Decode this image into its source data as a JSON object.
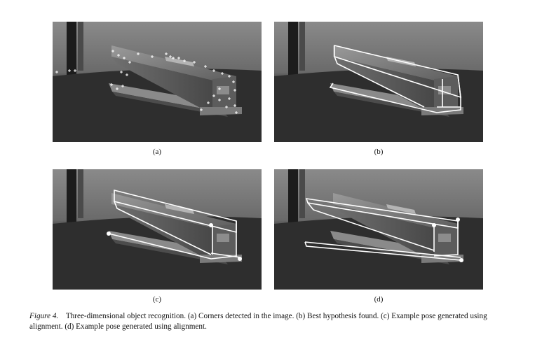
{
  "panels": [
    {
      "id": "a",
      "label": "(a)"
    },
    {
      "id": "b",
      "label": "(b)"
    },
    {
      "id": "c",
      "label": "(c)"
    },
    {
      "id": "d",
      "label": "(d)"
    }
  ],
  "caption": {
    "figure_label": "Figure 4.",
    "text": "Three-dimensional object recognition. (a) Corners detected in the image. (b) Best hypothesis found. (c) Example pose generated using alignment. (d) Example pose generated using alignment."
  }
}
